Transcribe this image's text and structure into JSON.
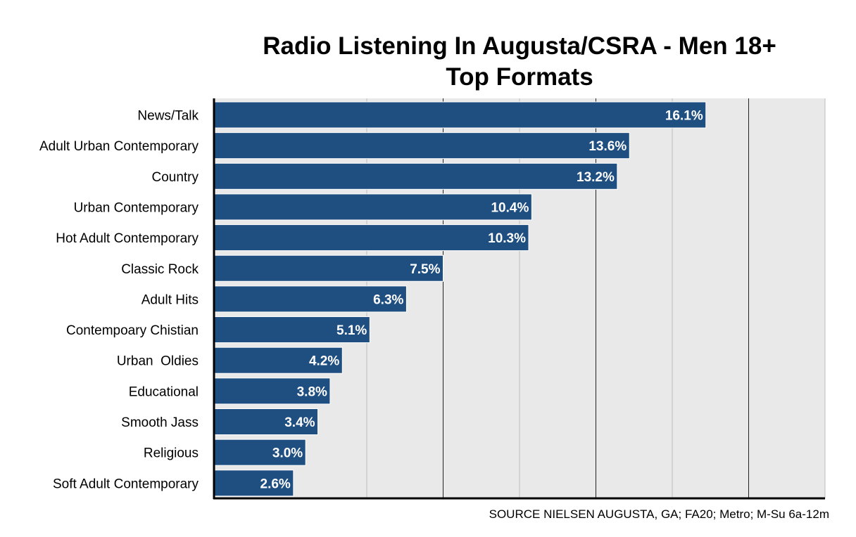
{
  "chart_data": {
    "type": "bar",
    "orientation": "horizontal",
    "title_lines": [
      "Radio Listening In Augusta/CSRA - Men 18+",
      "Top Formats"
    ],
    "categories": [
      "News/Talk",
      "Adult Urban Contemporary",
      "Country",
      "Urban Contemporary",
      "Hot Adult Contemporary",
      "Classic Rock",
      "Adult Hits",
      "Contempoary Chistian",
      "Urban  Oldies",
      "Educational",
      "Smooth Jass",
      "Religious",
      "Soft Adult Contemporary"
    ],
    "values": [
      16.1,
      13.6,
      13.2,
      10.4,
      10.3,
      7.5,
      6.3,
      5.1,
      4.2,
      3.8,
      3.4,
      3.0,
      2.6
    ],
    "data_labels": [
      "16.1%",
      "13.6%",
      "13.2%",
      "10.4%",
      "10.3%",
      "7.5%",
      "6.3%",
      "5.1%",
      "4.2%",
      "3.8%",
      "3.4%",
      "3.0%",
      "2.6%"
    ],
    "xlim": [
      0,
      20
    ],
    "major_gridlines": [
      7.5,
      12.5,
      17.5
    ],
    "minor_gridlines": [
      5,
      10,
      15,
      20
    ],
    "xlabel": "",
    "ylabel": "",
    "grid": true,
    "legend": "none",
    "axis_tick_labels_shown": false,
    "source_note": "SOURCE NIELSEN AUGUSTA, GA; FA20; Metro; M-Su 6a-12m"
  },
  "colors": {
    "bar": "#1f4e80",
    "bar_edge": "#ffffff",
    "plot_background": "#e9e9e9",
    "major_gridline": "#222222",
    "minor_gridline": "#bdbdbd",
    "axis": "#000000",
    "data_label": "#ffffff",
    "text": "#000000"
  }
}
